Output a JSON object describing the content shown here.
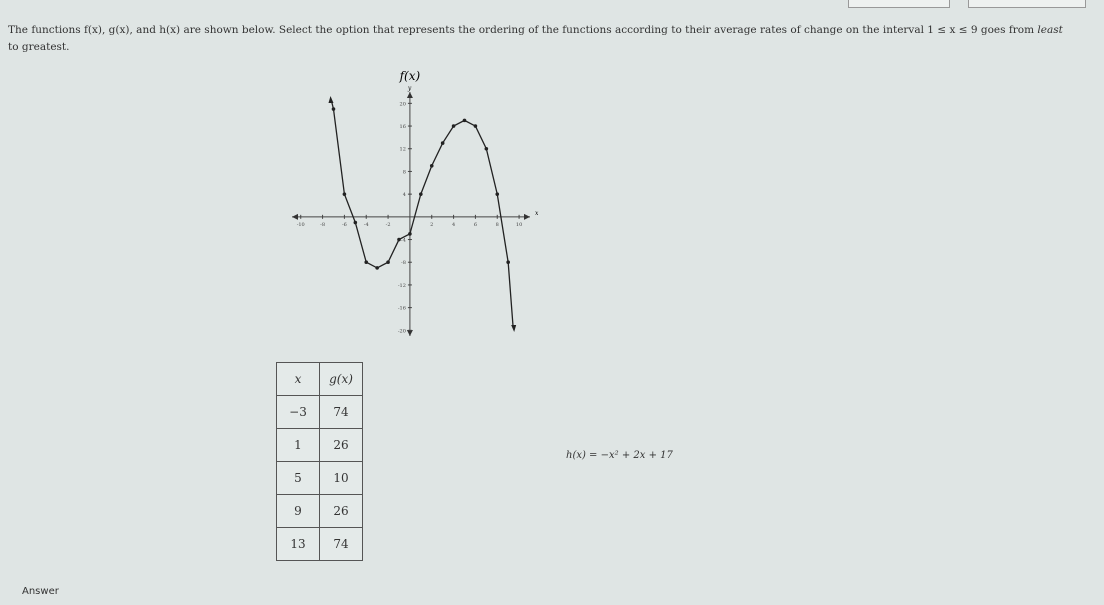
{
  "question": {
    "lead": "The functions f(x), g(x), and h(x) are shown below. Select the option that represents the ordering of the functions according to their average rates of change on the interval 1 ≤ x ≤ 9 goes from",
    "em": "least",
    "tail": "to greatest."
  },
  "graph": {
    "title": "f(x)",
    "xlabel": "x",
    "ylabel": "y",
    "xlim": [
      -10.8,
      11
    ],
    "ylim": [
      -21,
      22
    ],
    "xticks": [
      -10,
      -8,
      -6,
      -4,
      -2,
      2,
      4,
      6,
      8,
      10
    ],
    "yticks": [
      20,
      16,
      12,
      8,
      4,
      -4,
      -8,
      -12,
      -16,
      -20
    ],
    "points": {
      "x": [
        -7,
        -6,
        -5,
        -4,
        -3,
        -2,
        -1,
        0,
        1,
        2,
        3,
        4,
        5,
        6,
        7,
        8,
        9
      ],
      "y": [
        19,
        4,
        -1,
        -8,
        -9,
        -8,
        -4,
        -3,
        4,
        9,
        13,
        16,
        17,
        16,
        12,
        4,
        -8
      ]
    }
  },
  "table": {
    "header": [
      "x",
      "g(x)"
    ],
    "rows": [
      [
        "−3",
        "74"
      ],
      [
        "1",
        "26"
      ],
      [
        "5",
        "10"
      ],
      [
        "9",
        "26"
      ],
      [
        "13",
        "74"
      ]
    ]
  },
  "h": "h(x) = −x² + 2x + 17",
  "answer": "Answer"
}
